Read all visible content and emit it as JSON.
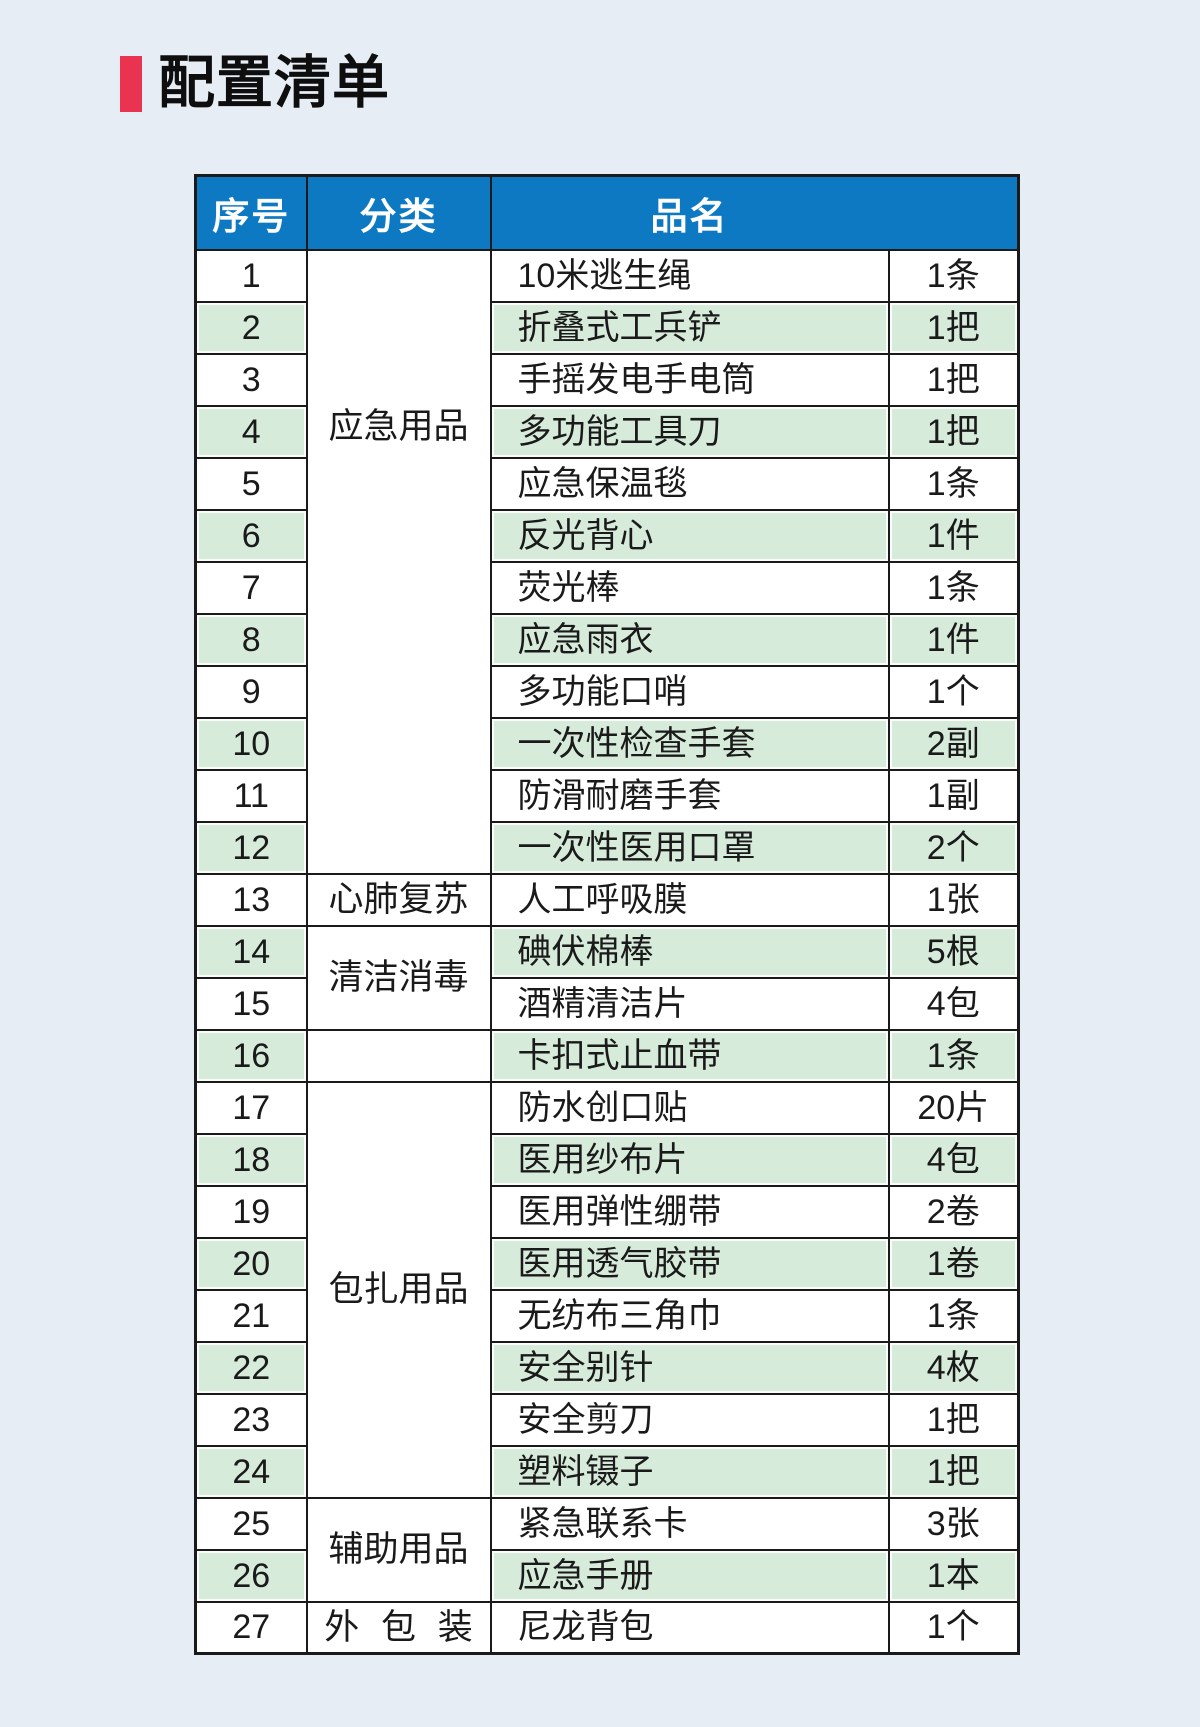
{
  "title": {
    "text": "配置清单"
  },
  "colors": {
    "accent": "#ea3350",
    "header_bg": "#0d79c3",
    "header_text": "#ffffff",
    "stripe_green": "#d7ebdb",
    "row_white": "#ffffff",
    "page_bg": "#e7edf5",
    "border": "#1a1a1a",
    "text": "#1a1a1a"
  },
  "table": {
    "headers": {
      "index": "序号",
      "category": "分类",
      "name": "品名"
    },
    "groups": [
      {
        "category": "应急用品",
        "label_position": "upper",
        "items": [
          {
            "index": "1",
            "name": "10米逃生绳",
            "qty": "1条"
          },
          {
            "index": "2",
            "name": "折叠式工兵铲",
            "qty": "1把"
          },
          {
            "index": "3",
            "name": "手摇发电手电筒",
            "qty": "1把"
          },
          {
            "index": "4",
            "name": "多功能工具刀",
            "qty": "1把"
          },
          {
            "index": "5",
            "name": "应急保温毯",
            "qty": "1条"
          },
          {
            "index": "6",
            "name": "反光背心",
            "qty": "1件"
          },
          {
            "index": "7",
            "name": "荧光棒",
            "qty": "1条"
          },
          {
            "index": "8",
            "name": "应急雨衣",
            "qty": "1件"
          },
          {
            "index": "9",
            "name": "多功能口哨",
            "qty": "1个"
          },
          {
            "index": "10",
            "name": "一次性检查手套",
            "qty": "2副"
          },
          {
            "index": "11",
            "name": "防滑耐磨手套",
            "qty": "1副"
          },
          {
            "index": "12",
            "name": "一次性医用口罩",
            "qty": "2个"
          }
        ]
      },
      {
        "category": "心肺复苏",
        "label_position": "middle",
        "items": [
          {
            "index": "13",
            "name": "人工呼吸膜",
            "qty": "1张"
          }
        ]
      },
      {
        "category": "清洁消毒",
        "label_position": "middle",
        "items": [
          {
            "index": "14",
            "name": "碘伏棉棒",
            "qty": "5根"
          },
          {
            "index": "15",
            "name": "酒精清洁片",
            "qty": "4包"
          }
        ]
      },
      {
        "category": "",
        "label_position": "middle",
        "items": [
          {
            "index": "16",
            "name": "卡扣式止血带",
            "qty": "1条"
          }
        ]
      },
      {
        "category": "包扎用品",
        "label_position": "middle",
        "items": [
          {
            "index": "17",
            "name": "防水创口贴",
            "qty": "20片"
          },
          {
            "index": "18",
            "name": "医用纱布片",
            "qty": "4包"
          },
          {
            "index": "19",
            "name": "医用弹性绷带",
            "qty": "2卷"
          },
          {
            "index": "20",
            "name": "医用透气胶带",
            "qty": "1卷"
          },
          {
            "index": "21",
            "name": "无纺布三角巾",
            "qty": "1条"
          },
          {
            "index": "22",
            "name": "安全别针",
            "qty": "4枚"
          },
          {
            "index": "23",
            "name": "安全剪刀",
            "qty": "1把"
          },
          {
            "index": "24",
            "name": "塑料镊子",
            "qty": "1把"
          }
        ]
      },
      {
        "category": "辅助用品",
        "label_position": "middle",
        "items": [
          {
            "index": "25",
            "name": "紧急联系卡",
            "qty": "3张"
          },
          {
            "index": "26",
            "name": "应急手册",
            "qty": "1本"
          }
        ]
      },
      {
        "category": "外 包 装",
        "label_position": "middle",
        "items": [
          {
            "index": "27",
            "name": "尼龙背包",
            "qty": "1个"
          }
        ]
      }
    ]
  }
}
